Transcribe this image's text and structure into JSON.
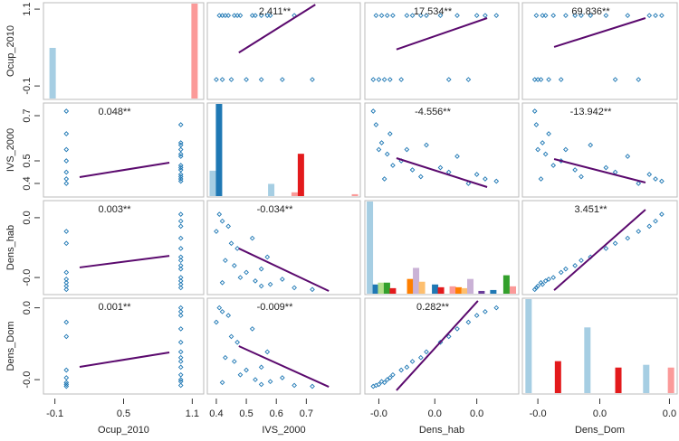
{
  "chart_data": {
    "type": "pairs",
    "point_color": "#1f78b4",
    "fit_color": "#5b0a6e",
    "variables": [
      {
        "name": "Ocup_2010",
        "xlim": [
          -0.2,
          1.2
        ],
        "ylim": [
          -0.31,
          1.2
        ],
        "xticks": [
          -0.1,
          0.5,
          1.1
        ],
        "yticks": [
          -0.1,
          1.1
        ],
        "values": [
          0,
          0,
          0,
          0,
          0,
          0,
          1,
          1,
          1,
          1,
          1,
          1,
          1,
          1,
          1,
          1,
          1,
          1,
          1,
          0
        ]
      },
      {
        "name": "IVS_2000",
        "xlim": [
          0.37,
          0.88
        ],
        "ylim": [
          0.34,
          0.756
        ],
        "xticks": [
          0.4,
          0.5,
          0.6,
          0.7
        ],
        "yticks": [
          0.4,
          0.5,
          0.7
        ],
        "values": [
          0.42,
          0.45,
          0.5,
          0.55,
          0.62,
          0.4,
          0.41,
          0.43,
          0.48,
          0.52,
          0.55,
          0.58,
          0.66,
          0.44,
          0.47,
          0.53,
          0.57,
          0.42,
          0.46,
          0.72
        ]
      },
      {
        "name": "Dens_hab",
        "xlim": [
          -0.025,
          0.03
        ],
        "ylim": [
          -0.025,
          0.03
        ],
        "xticks": [
          {
            "value": -0.02,
            "label": "-0.0"
          },
          {
            "value": 0,
            "label": "0.0"
          },
          {
            "value": 0.015,
            "label": "0.0"
          }
        ],
        "yticks": [
          {
            "value": -0.015,
            "label": "-0.0"
          },
          {
            "value": 0.02,
            "label": "0.0"
          }
        ],
        "values": [
          -0.018,
          0.005,
          -0.012,
          -0.02,
          -0.016,
          0.012,
          0.022,
          -0.005,
          -0.015,
          0.008,
          -0.01,
          -0.019,
          -0.021,
          0.015,
          0.002,
          -0.017,
          -0.003,
          0.018,
          -0.008,
          -0.022
        ]
      },
      {
        "name": "Dens_Dom",
        "xlim": [
          -0.005,
          0.005
        ],
        "ylim": [
          -0.005,
          0.005
        ],
        "xticks": [
          {
            "value": -0.004,
            "label": "-0.0"
          },
          {
            "value": 0,
            "label": "0.0"
          },
          {
            "value": 0.0045,
            "label": "0.0"
          }
        ],
        "yticks": [
          {
            "value": -0.0035,
            "label": "-0.0"
          },
          {
            "value": 0.004,
            "label": "0.0"
          }
        ],
        "values": [
          -0.0038,
          0.001,
          -0.0025,
          -0.004,
          -0.0033,
          0.0025,
          0.004,
          -0.0012,
          -0.003,
          0.0018,
          -0.0022,
          -0.0037,
          -0.0041,
          0.0032,
          0.0004,
          -0.0035,
          -0.0006,
          0.0036,
          -0.0016,
          -0.0042
        ]
      }
    ],
    "panels": [
      [
        {
          "x": [
            -0.12,
            1.12
          ],
          "values": [
            8,
            15
          ],
          "colors": [
            "#a6cee3",
            "#fb9a99"
          ]
        },
        {
          "label": "2.411**",
          "fit_x": [
            0.475,
            0.73
          ],
          "fit_y": [
            0.42,
            1.17
          ]
        },
        {
          "label": "17.534**",
          "fit_x": [
            -0.0137,
            0.0187
          ],
          "fit_y": [
            0.47,
            0.96
          ]
        },
        {
          "label": "69.836**",
          "fit_x": [
            -0.00295,
            0.00295
          ],
          "fit_y": [
            0.51,
            0.96
          ]
        }
      ],
      [
        {
          "label": "0.048**",
          "fit_x": [
            0.116,
            0.9
          ],
          "fit_y": [
            0.428,
            0.492
          ]
        },
        {
          "x": [
            0.388,
            0.409,
            0.583,
            0.661,
            0.682,
            0.862
          ],
          "values": [
            27,
            98,
            13,
            4,
            45,
            2
          ],
          "colors": [
            "#a6cee3",
            "#1f78b4",
            "#a6cee3",
            "#fb9a99",
            "#e31a1c",
            "#fb9a99"
          ]
        },
        {
          "label": "-4.556**",
          "fit_x": [
            -0.0137,
            0.0187
          ],
          "fit_y": [
            0.512,
            0.384
          ]
        },
        {
          "label": "-13.942**",
          "fit_x": [
            -0.00295,
            0.00295
          ],
          "fit_y": [
            0.508,
            0.404
          ]
        }
      ],
      [
        {
          "label": "0.003**",
          "fit_x": [
            0.116,
            0.9
          ],
          "fit_y": [
            -0.0091,
            -0.0023
          ]
        },
        {
          "label": "-0.034**",
          "fit_x": [
            0.475,
            0.775
          ],
          "fit_y": [
            0.002,
            -0.0229
          ]
        },
        {
          "x": [
            -0.0232,
            -0.0211,
            -0.0192,
            -0.0171,
            -0.015,
            -0.0088,
            -0.0067,
            -0.0046,
            0.0001,
            0.0022,
            0.0064,
            0.0085,
            0.0106,
            0.0127,
            0.0167,
            0.0209,
            0.0256,
            0.0279
          ],
          "values": [
            100,
            10,
            12,
            12,
            6,
            16,
            28,
            13,
            10,
            7,
            8,
            7,
            6,
            16,
            3,
            4,
            20,
            8
          ],
          "colors": [
            "#a6cee3",
            "#1f78b4",
            "#b2df8a",
            "#33a02c",
            "#e31a1c",
            "#ff7f00",
            "#cab2d6",
            "#fdbf6f",
            "#1f78b4",
            "#e31a1c",
            "#fb9a99",
            "#ff7f00",
            "#fdbf6f",
            "#cab2d6",
            "#6a3d9a",
            "#1f78b4",
            "#33a02c",
            "#fb9a99"
          ]
        },
        {
          "label": "3.451**",
          "fit_x": [
            -0.00295,
            0.00295
          ],
          "fit_y": [
            -0.0224,
            0.0247
          ]
        }
      ],
      [
        {
          "label": "0.001**",
          "fit_x": [
            0.116,
            0.9
          ],
          "fit_y": [
            -0.00217,
            -0.00066
          ]
        },
        {
          "label": "-0.009**",
          "fit_x": [
            0.475,
            0.775
          ],
          "fit_y": [
            0.0,
            -0.00425
          ]
        },
        {
          "label": "0.282**",
          "fit_x": [
            -0.0137,
            0.0154
          ],
          "fit_y": [
            -0.00462,
            0.00472
          ]
        },
        {
          "x": [
            -0.0046,
            -0.0027,
            -0.0008,
            0.0012,
            0.003,
            0.0046
          ],
          "values": [
            103,
            35,
            72,
            28,
            31,
            28
          ],
          "colors": [
            "#a6cee3",
            "#e31a1c",
            "#a6cee3",
            "#e31a1c",
            "#a6cee3",
            "#fb9a99"
          ]
        }
      ]
    ]
  }
}
